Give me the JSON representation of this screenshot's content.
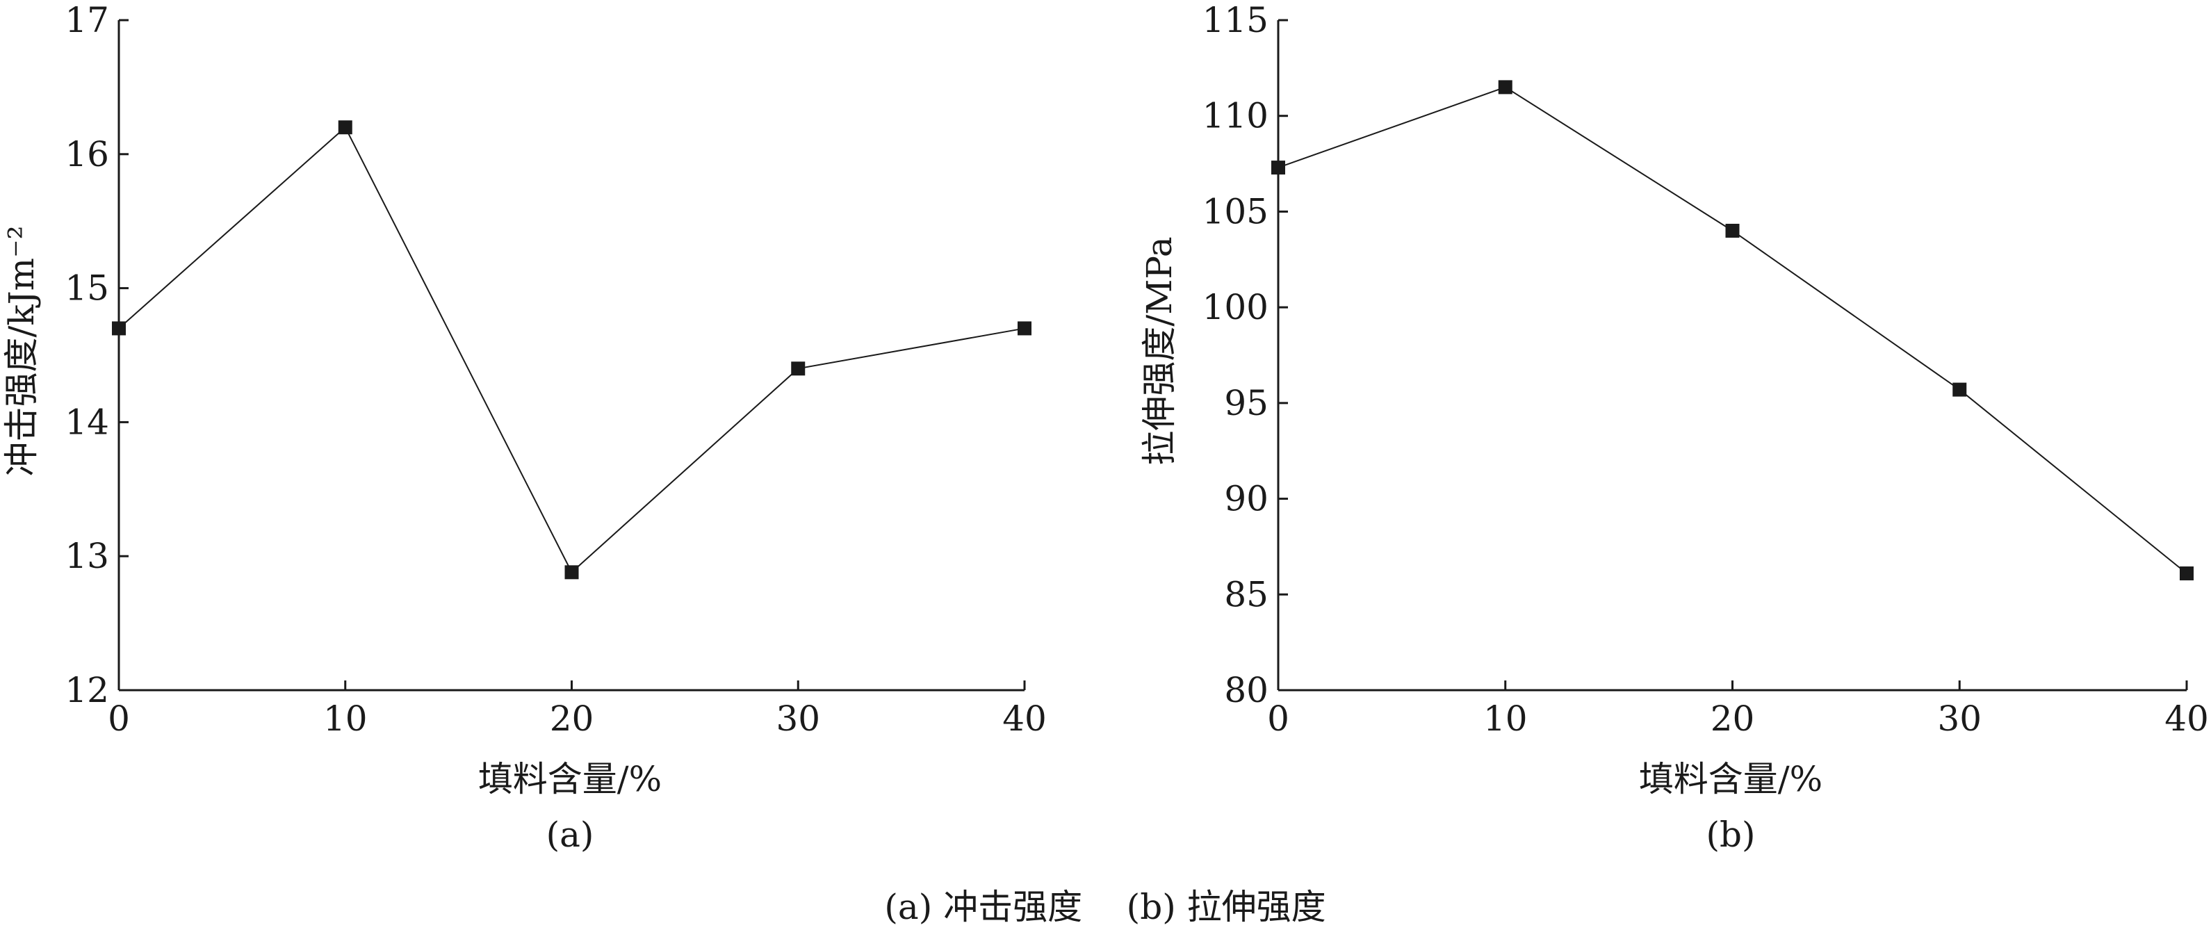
{
  "caption": "(a) 冲击强度    (b) 拉伸强度",
  "chart_data": [
    {
      "type": "line",
      "sub_label": "(a)",
      "xlabel": "填料含量/%",
      "ylabel": "冲击强度/kJm⁻²",
      "x": [
        0,
        10,
        20,
        30,
        40
      ],
      "series": [
        {
          "values": [
            14.7,
            16.2,
            12.88,
            14.4,
            14.7
          ]
        }
      ],
      "xlim": [
        0,
        40
      ],
      "ylim": [
        12,
        17
      ],
      "xticks": [
        0,
        10,
        20,
        30,
        40
      ],
      "yticks": [
        12,
        13,
        14,
        15,
        16,
        17
      ],
      "marker": "square",
      "grid": false,
      "colors": {
        "line": "#1a1a1a",
        "marker": "#1a1a1a"
      }
    },
    {
      "type": "line",
      "sub_label": "(b)",
      "xlabel": "填料含量/%",
      "ylabel": "拉伸强度/MPa",
      "x": [
        0,
        10,
        20,
        30,
        40
      ],
      "series": [
        {
          "values": [
            107.3,
            111.5,
            104.0,
            95.7,
            86.1
          ]
        }
      ],
      "xlim": [
        0,
        40
      ],
      "ylim": [
        80,
        115
      ],
      "xticks": [
        0,
        10,
        20,
        30,
        40
      ],
      "yticks": [
        80,
        85,
        90,
        95,
        100,
        105,
        110,
        115
      ],
      "marker": "square",
      "grid": false,
      "colors": {
        "line": "#1a1a1a",
        "marker": "#1a1a1a"
      }
    }
  ]
}
